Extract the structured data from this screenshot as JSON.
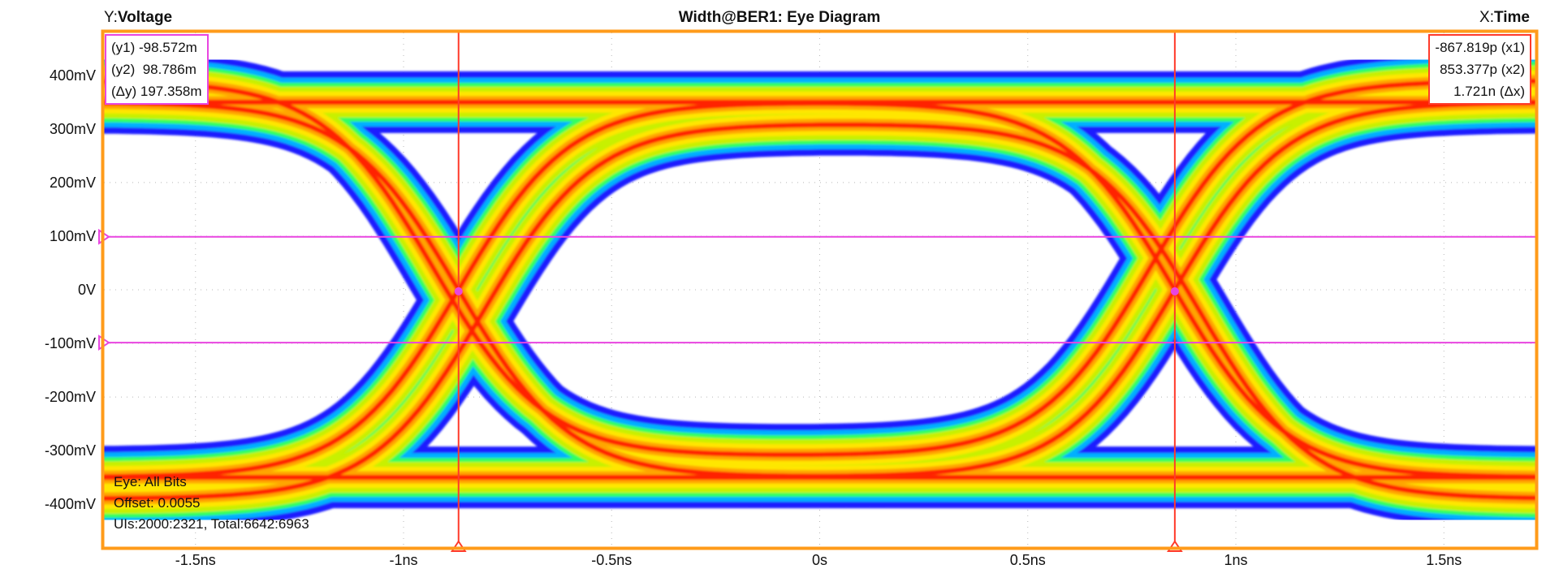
{
  "header": {
    "y_prefix": "Y:",
    "y_name": "Voltage",
    "title": "Width@BER1: Eye Diagram",
    "x_prefix": "X:",
    "x_name": "Time"
  },
  "readouts": {
    "y": [
      "(y1) -98.572m",
      "(y2)  98.786m",
      "(Δy) 197.358m"
    ],
    "x": [
      "-867.819p (x1)",
      "853.377p (x2)",
      "1.721n (Δx)"
    ]
  },
  "info": {
    "eye": "Eye: All Bits",
    "offset": "Offset: 0.0055",
    "uis": "UIs:2000:2321, Total:6642:6963"
  },
  "colors": {
    "frame": "#ff9b1a",
    "cursor_x": "#ff3a2a",
    "cursor_y": "#e845e0",
    "grid": "#b8b8b8"
  },
  "chart_data": {
    "type": "heatmap",
    "title": "Width@BER1: Eye Diagram",
    "xlabel": "Time",
    "ylabel": "Voltage",
    "xlim": [
      -1.72,
      1.72
    ],
    "ylim": [
      -480,
      480
    ],
    "x_unit": "ns",
    "y_unit": "mV",
    "x_ticks": [
      -1.5,
      -1.0,
      -0.5,
      0,
      0.5,
      1.0,
      1.5
    ],
    "x_tick_labels": [
      "-1.5ns",
      "-1ns",
      "-0.5ns",
      "0s",
      "0.5ns",
      "1ns",
      "1.5ns"
    ],
    "y_ticks": [
      400,
      300,
      200,
      100,
      0,
      -100,
      -200,
      -300,
      -400
    ],
    "y_tick_labels": [
      "400mV",
      "300mV",
      "200mV",
      "100mV",
      "0V",
      "-100mV",
      "-200mV",
      "-300mV",
      "-400mV"
    ],
    "grid": true,
    "colormap": [
      "#1a1aff",
      "#00b0ff",
      "#30ff60",
      "#c8f000",
      "#ffe600",
      "#ffa500",
      "#ff2000"
    ],
    "eye_crossings_ns": [
      -0.868,
      0.853
    ],
    "levels_mV": [
      -350,
      350
    ],
    "cursors": {
      "x1_ns": -0.867819,
      "x2_ns": 0.853377,
      "dx_ns": 1.721,
      "y1_mV": -98.572,
      "y2_mV": 98.786,
      "dy_mV": 197.358
    }
  }
}
